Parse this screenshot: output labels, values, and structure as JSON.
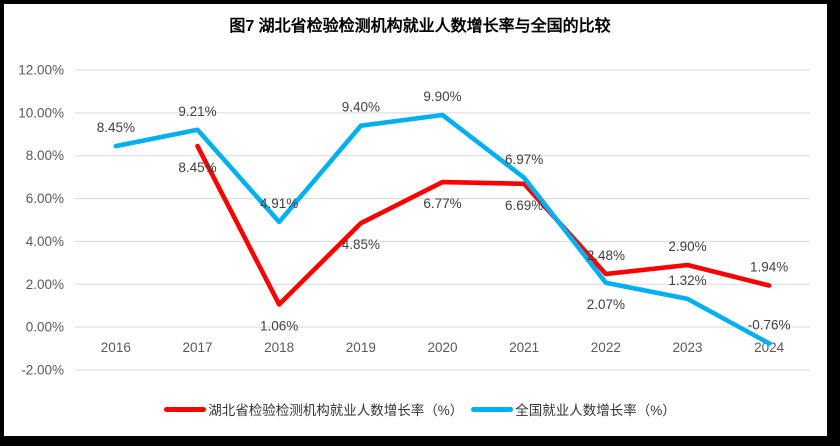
{
  "title": "图7 湖北省检验检测机构就业人数增长率与全国的比较",
  "colors": {
    "hubei_red": "#FE0000",
    "national_blue": "#00B0F0",
    "gridline": "#D9D9D9",
    "axis_text": "#595959",
    "data_label_text": "#404040",
    "frame": "#000000",
    "background": "#FFFFFF"
  },
  "legend": {
    "items": [
      {
        "id": "hubei",
        "label": "湖北省检验检测机构就业人数增长率（%）",
        "color": "#FE0000"
      },
      {
        "id": "national",
        "label": "全国就业人数增长率（%）",
        "color": "#00B0F0"
      }
    ]
  },
  "chart_data": {
    "type": "line",
    "title": "图7 湖北省检验检测机构就业人数增长率与全国的比较",
    "categories": [
      "2016",
      "2017",
      "2018",
      "2019",
      "2020",
      "2021",
      "2022",
      "2023",
      "2024"
    ],
    "series": [
      {
        "id": "hubei",
        "name": "湖北省检验检测机构就业人数增长率（%）",
        "color": "#FE0000",
        "values": [
          null,
          8.45,
          1.06,
          4.85,
          6.77,
          6.69,
          2.48,
          2.9,
          1.94
        ],
        "label_positions": [
          null,
          "below",
          "below",
          "below",
          "below",
          "below",
          "above",
          "above",
          "above"
        ]
      },
      {
        "id": "national",
        "name": "全国就业人数增长率（%）",
        "color": "#00B0F0",
        "values": [
          8.45,
          9.21,
          4.91,
          9.4,
          9.9,
          6.97,
          2.07,
          1.32,
          -0.76
        ],
        "label_positions": [
          "above",
          "above",
          "above",
          "above",
          "above",
          "above",
          "below",
          "above",
          "above"
        ]
      }
    ],
    "ylim": [
      -2,
      12
    ],
    "yticks": [
      12,
      10,
      8,
      6,
      4,
      2,
      0,
      -2
    ],
    "ytick_format": "0.00%",
    "xlabel": "",
    "ylabel": "",
    "grid": "horizontal",
    "legend_position": "bottom",
    "data_labels": true
  }
}
